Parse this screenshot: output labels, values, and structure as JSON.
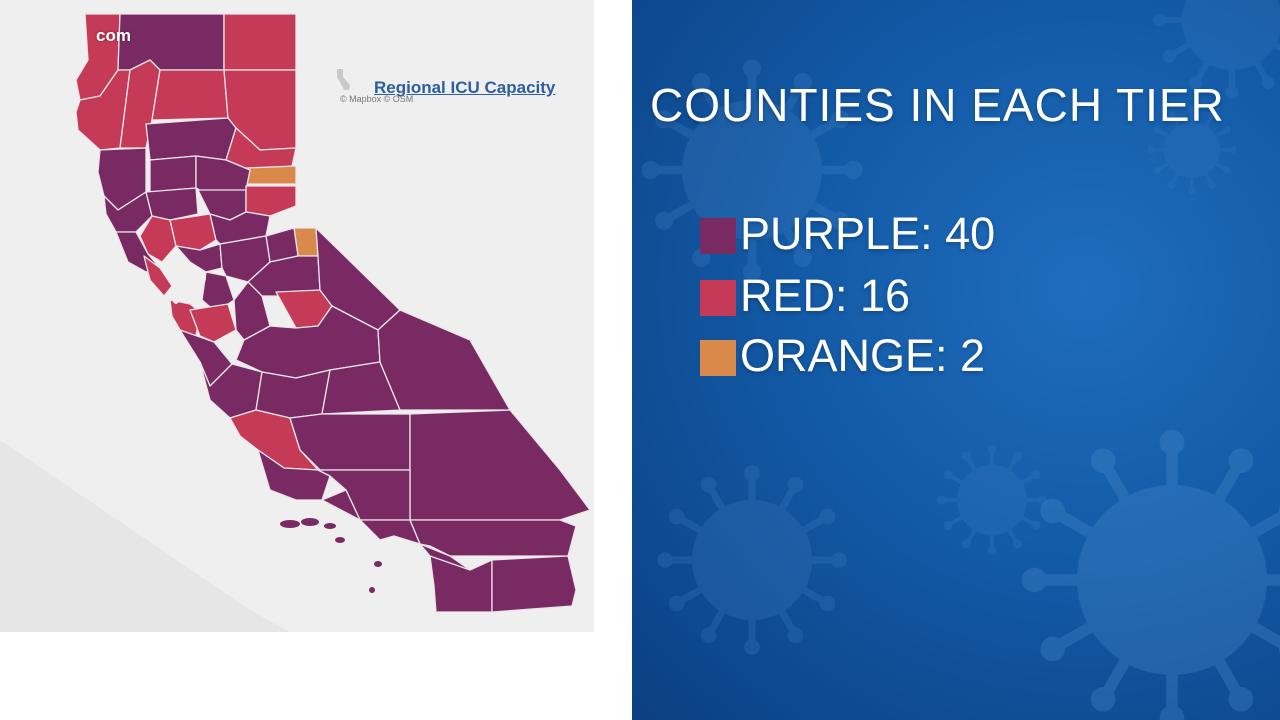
{
  "map": {
    "watermark": "com",
    "link_text": "Regional ICU Capacity",
    "attribution": "© Mapbox © OSM",
    "colors": {
      "purple": "#7a2a63",
      "red": "#c53a57",
      "orange": "#d98a4b",
      "background": "#efefef"
    }
  },
  "panel": {
    "title": "COUNTIES IN EACH TIER",
    "tiers": [
      {
        "label": "PURPLE: 40",
        "color": "#7a2a63"
      },
      {
        "label": "RED: 16",
        "color": "#c53a57"
      },
      {
        "label": "ORANGE: 2",
        "color": "#d98a4b"
      }
    ]
  }
}
